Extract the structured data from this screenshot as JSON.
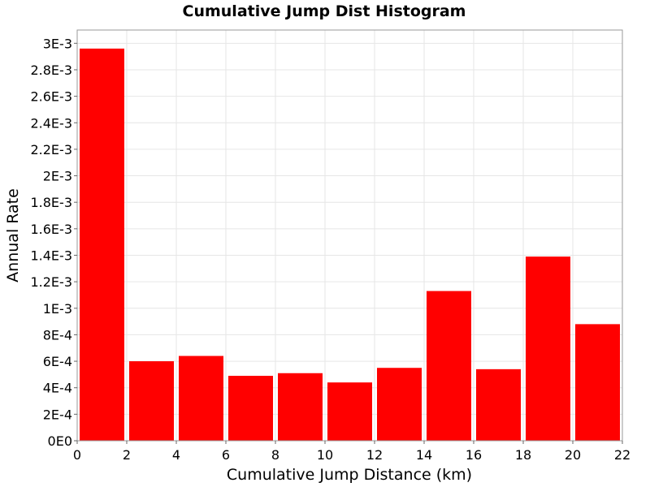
{
  "chart_data": {
    "type": "bar",
    "title": "Cumulative Jump Dist Histogram",
    "xlabel": "Cumulative Jump Distance (km)",
    "ylabel": "Annual Rate",
    "xlim": [
      0,
      22
    ],
    "ylim": [
      0,
      0.0031
    ],
    "grid": true,
    "x_ticks": [
      0,
      2,
      4,
      6,
      8,
      10,
      12,
      14,
      16,
      18,
      20,
      22
    ],
    "x_tick_labels": [
      "0",
      "2",
      "4",
      "6",
      "8",
      "10",
      "12",
      "14",
      "16",
      "18",
      "20",
      "22"
    ],
    "y_ticks": [
      0,
      0.0002,
      0.0004,
      0.0006,
      0.0008,
      0.001,
      0.0012,
      0.0014,
      0.0016,
      0.0018,
      0.002,
      0.0022,
      0.0024,
      0.0026,
      0.0028,
      0.003
    ],
    "y_tick_labels": [
      "0E0",
      "2E-4",
      "4E-4",
      "6E-4",
      "8E-4",
      "1E-3",
      "1.2E-3",
      "1.4E-3",
      "1.6E-3",
      "1.8E-3",
      "2E-3",
      "2.2E-3",
      "2.4E-3",
      "2.6E-3",
      "2.8E-3",
      "3E-3"
    ],
    "bin_width": 2,
    "bin_centers": [
      1,
      3,
      5,
      7,
      9,
      11,
      13,
      15,
      17,
      19,
      21
    ],
    "values": [
      0.00296,
      0.0006,
      0.00064,
      0.00049,
      0.00051,
      0.00044,
      0.00055,
      0.00113,
      0.00054,
      0.00139,
      0.00088
    ],
    "bar_color": "#ff0000",
    "grid_color": "#e6e6e6"
  }
}
